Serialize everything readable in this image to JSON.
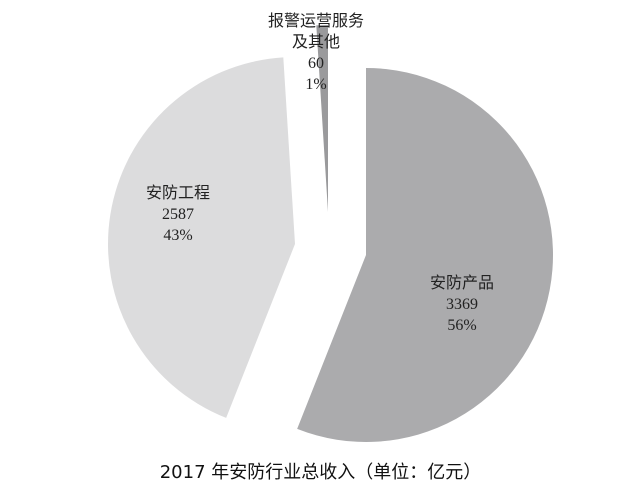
{
  "chart_data": {
    "type": "pie",
    "title": "2017 年安防行业总收入（单位：亿元）",
    "exploded": true,
    "slices": [
      {
        "label": "安防产品",
        "value": 3369,
        "percent": "56%",
        "color": "#ababad"
      },
      {
        "label": "安防工程",
        "value": 2587,
        "percent": "43%",
        "color": "#dcdcdd"
      },
      {
        "label": "报警运营服务及其他",
        "label_lines": [
          "报警运营服务",
          "及其他"
        ],
        "value": 60,
        "percent": "1%",
        "color": "#9a9a9c"
      }
    ]
  }
}
